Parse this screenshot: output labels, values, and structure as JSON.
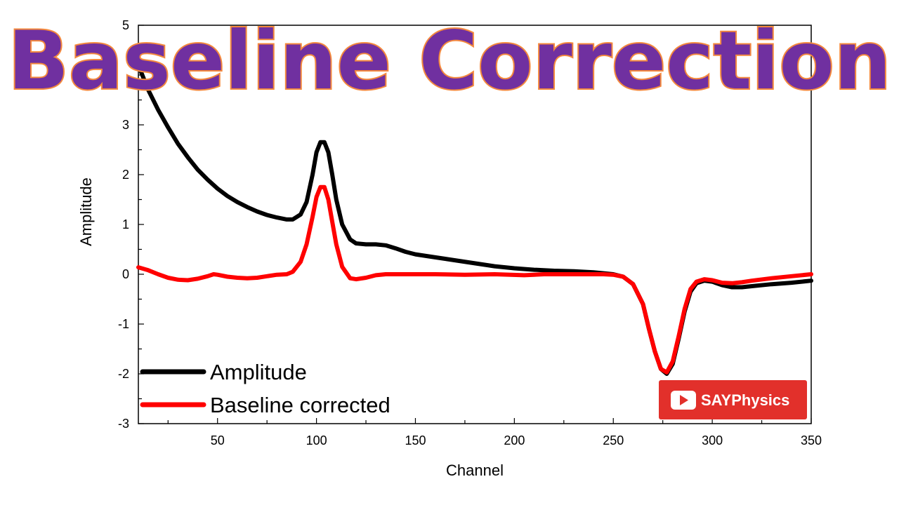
{
  "banner": {
    "title": "Baseline Correction"
  },
  "badge": {
    "label": "SAYPhysics",
    "color": "#e2302b",
    "icon": "play-icon"
  },
  "chart_data": {
    "type": "line",
    "title": "",
    "xlabel": "Channel",
    "ylabel": "Amplitude",
    "xlim": [
      10,
      350
    ],
    "ylim": [
      -3,
      5
    ],
    "xticks": [
      50,
      100,
      150,
      200,
      250,
      300,
      350
    ],
    "yticks": [
      -3,
      -2,
      -1,
      0,
      1,
      2,
      3,
      5
    ],
    "grid": false,
    "legend_position": "bottom-left",
    "series": [
      {
        "name": "Amplitude",
        "color": "#000000",
        "points": [
          [
            10,
            4.2
          ],
          [
            15,
            3.7
          ],
          [
            20,
            3.3
          ],
          [
            25,
            2.95
          ],
          [
            30,
            2.62
          ],
          [
            35,
            2.35
          ],
          [
            40,
            2.1
          ],
          [
            45,
            1.9
          ],
          [
            50,
            1.72
          ],
          [
            55,
            1.57
          ],
          [
            60,
            1.45
          ],
          [
            65,
            1.35
          ],
          [
            70,
            1.26
          ],
          [
            75,
            1.19
          ],
          [
            80,
            1.14
          ],
          [
            85,
            1.1
          ],
          [
            88,
            1.1
          ],
          [
            92,
            1.2
          ],
          [
            95,
            1.45
          ],
          [
            98,
            2.0
          ],
          [
            100,
            2.45
          ],
          [
            102,
            2.65
          ],
          [
            104,
            2.65
          ],
          [
            106,
            2.45
          ],
          [
            108,
            2.0
          ],
          [
            110,
            1.5
          ],
          [
            113,
            1.0
          ],
          [
            117,
            0.7
          ],
          [
            120,
            0.62
          ],
          [
            125,
            0.6
          ],
          [
            130,
            0.6
          ],
          [
            135,
            0.58
          ],
          [
            140,
            0.52
          ],
          [
            145,
            0.45
          ],
          [
            150,
            0.4
          ],
          [
            160,
            0.34
          ],
          [
            170,
            0.28
          ],
          [
            180,
            0.22
          ],
          [
            190,
            0.16
          ],
          [
            200,
            0.12
          ],
          [
            210,
            0.09
          ],
          [
            220,
            0.07
          ],
          [
            230,
            0.06
          ],
          [
            240,
            0.04
          ],
          [
            250,
            0.0
          ],
          [
            255,
            -0.05
          ],
          [
            260,
            -0.2
          ],
          [
            265,
            -0.6
          ],
          [
            268,
            -1.1
          ],
          [
            271,
            -1.55
          ],
          [
            274,
            -1.9
          ],
          [
            277,
            -2.0
          ],
          [
            280,
            -1.8
          ],
          [
            283,
            -1.3
          ],
          [
            286,
            -0.75
          ],
          [
            289,
            -0.35
          ],
          [
            292,
            -0.18
          ],
          [
            296,
            -0.13
          ],
          [
            300,
            -0.15
          ],
          [
            305,
            -0.22
          ],
          [
            310,
            -0.26
          ],
          [
            315,
            -0.26
          ],
          [
            320,
            -0.24
          ],
          [
            330,
            -0.2
          ],
          [
            340,
            -0.17
          ],
          [
            350,
            -0.13
          ]
        ]
      },
      {
        "name": "Baseline corrected",
        "color": "#ff0000",
        "points": [
          [
            10,
            0.14
          ],
          [
            15,
            0.08
          ],
          [
            20,
            0.0
          ],
          [
            25,
            -0.07
          ],
          [
            30,
            -0.11
          ],
          [
            35,
            -0.12
          ],
          [
            40,
            -0.09
          ],
          [
            45,
            -0.04
          ],
          [
            48,
            0.0
          ],
          [
            50,
            -0.01
          ],
          [
            55,
            -0.05
          ],
          [
            60,
            -0.07
          ],
          [
            65,
            -0.08
          ],
          [
            70,
            -0.07
          ],
          [
            75,
            -0.04
          ],
          [
            80,
            -0.01
          ],
          [
            85,
            0.0
          ],
          [
            88,
            0.05
          ],
          [
            92,
            0.25
          ],
          [
            95,
            0.6
          ],
          [
            98,
            1.15
          ],
          [
            100,
            1.55
          ],
          [
            102,
            1.75
          ],
          [
            104,
            1.75
          ],
          [
            106,
            1.5
          ],
          [
            108,
            1.05
          ],
          [
            110,
            0.6
          ],
          [
            113,
            0.15
          ],
          [
            117,
            -0.08
          ],
          [
            120,
            -0.1
          ],
          [
            125,
            -0.07
          ],
          [
            130,
            -0.02
          ],
          [
            135,
            0.0
          ],
          [
            145,
            0.0
          ],
          [
            160,
            0.0
          ],
          [
            175,
            -0.01
          ],
          [
            190,
            0.0
          ],
          [
            205,
            -0.02
          ],
          [
            215,
            0.0
          ],
          [
            230,
            0.0
          ],
          [
            245,
            0.0
          ],
          [
            250,
            -0.01
          ],
          [
            255,
            -0.05
          ],
          [
            260,
            -0.2
          ],
          [
            265,
            -0.6
          ],
          [
            268,
            -1.1
          ],
          [
            271,
            -1.55
          ],
          [
            274,
            -1.9
          ],
          [
            277,
            -1.97
          ],
          [
            280,
            -1.75
          ],
          [
            283,
            -1.25
          ],
          [
            286,
            -0.7
          ],
          [
            289,
            -0.3
          ],
          [
            292,
            -0.15
          ],
          [
            296,
            -0.1
          ],
          [
            300,
            -0.12
          ],
          [
            305,
            -0.17
          ],
          [
            310,
            -0.18
          ],
          [
            315,
            -0.16
          ],
          [
            320,
            -0.13
          ],
          [
            330,
            -0.08
          ],
          [
            340,
            -0.04
          ],
          [
            350,
            0.0
          ]
        ]
      }
    ]
  }
}
